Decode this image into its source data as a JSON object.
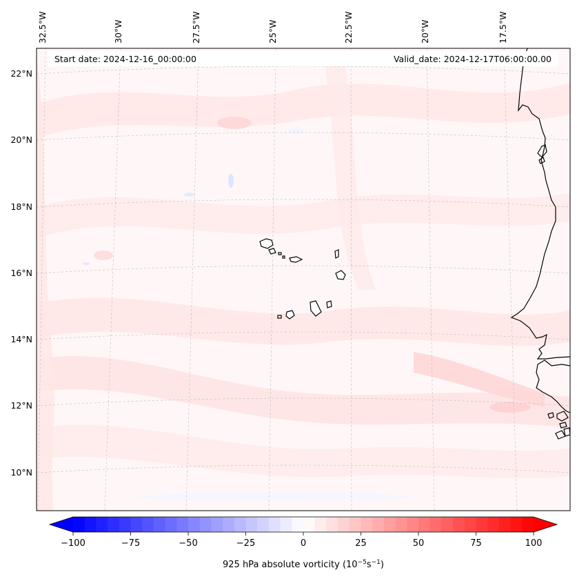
{
  "map": {
    "start_label": "Start date: 2024-12-16_00:00:00",
    "valid_label": "Valid_date: 2024-12-17T06:00:00.00",
    "lon_labels": [
      "32.5°W",
      "30°W",
      "27.5°W",
      "25°W",
      "22.5°W",
      "20°W",
      "17.5°W"
    ],
    "lat_labels": [
      "22°N",
      "20°N",
      "18°N",
      "16°N",
      "14°N",
      "12°N",
      "10°N"
    ],
    "grid": true,
    "coastline_color": "#000000"
  },
  "colorbar": {
    "min": -100,
    "max": 100,
    "ticks": [
      -100,
      -75,
      -50,
      -25,
      0,
      25,
      50,
      75,
      100
    ],
    "tick_labels": [
      "−100",
      "−75",
      "−50",
      "−25",
      "0",
      "25",
      "50",
      "75",
      "100"
    ],
    "low_color": "#0000ff",
    "mid_color": "#ffffff",
    "high_color": "#ff0000",
    "label_prefix": "925 hPa absolute vorticity (10",
    "label_exp1": "−5",
    "label_mid": "s",
    "label_exp2": "−1",
    "label_suffix": ")"
  }
}
